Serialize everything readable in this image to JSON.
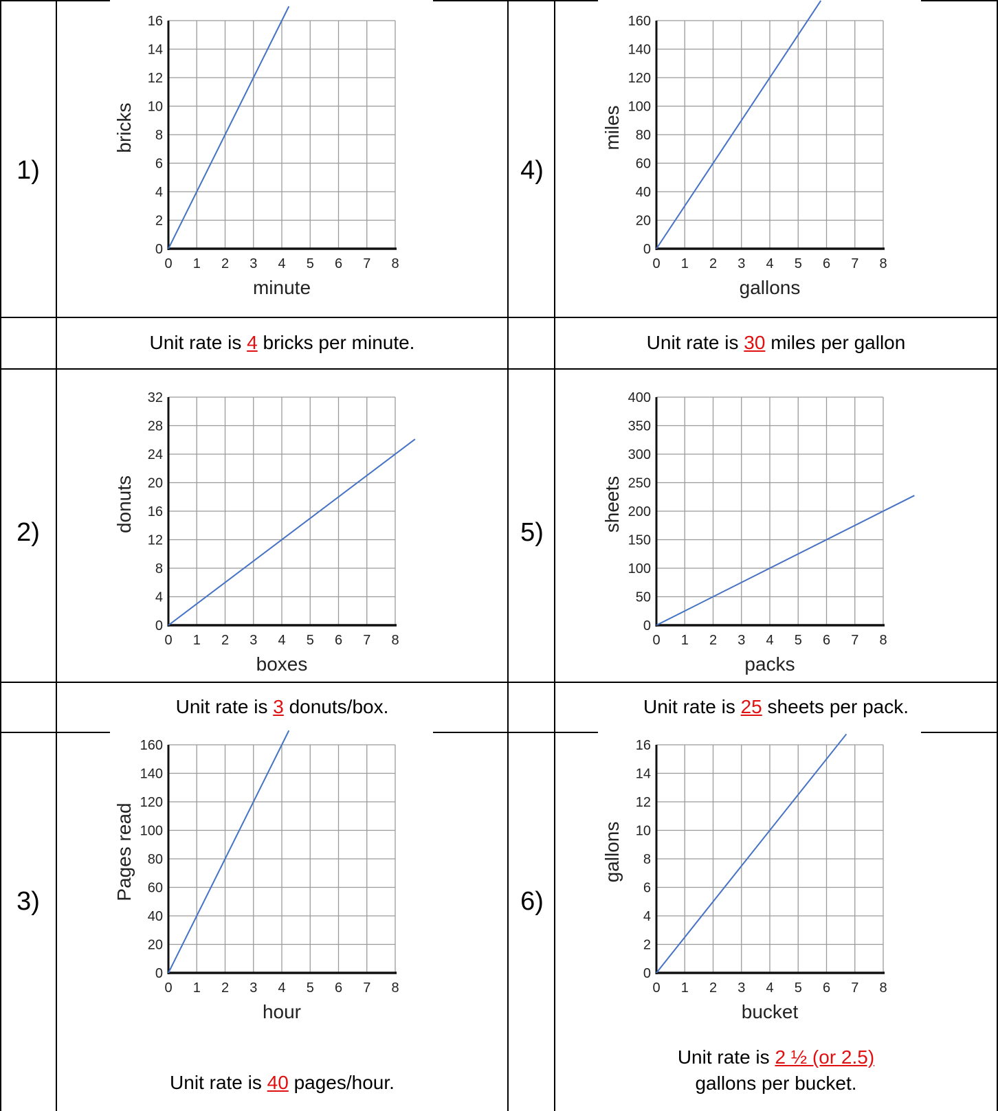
{
  "problems": [
    {
      "number": "1)",
      "rate_prefix": "Unit rate is ",
      "rate_value": "4",
      "rate_suffix": " bricks per minute."
    },
    {
      "number": "2)",
      "rate_prefix": "Unit rate is ",
      "rate_value": "3",
      "rate_suffix": " donuts/box."
    },
    {
      "number": "3)",
      "rate_prefix": "Unit rate is ",
      "rate_value": "40",
      "rate_suffix": " pages/hour."
    },
    {
      "number": "4)",
      "rate_prefix": "Unit rate is ",
      "rate_value": "30",
      "rate_suffix": " miles per gallon"
    },
    {
      "number": "5)",
      "rate_prefix": "Unit rate is ",
      "rate_value": "25",
      "rate_suffix": " sheets per pack."
    },
    {
      "number": "6)",
      "rate_prefix": "Unit rate is ",
      "rate_value": "2 ½ (or 2.5)",
      "rate_suffix": "gallons per bucket."
    }
  ],
  "colors": {
    "line": "#4472c4",
    "answer": "#e01010",
    "grid": "#9a9a9a"
  },
  "chart_data": [
    {
      "type": "line",
      "xlabel": "minute",
      "ylabel": "bricks",
      "xlim": [
        0,
        8
      ],
      "ylim": [
        0,
        16
      ],
      "xticks": [
        0,
        1,
        2,
        3,
        4,
        5,
        6,
        7,
        8
      ],
      "yticks": [
        0,
        2,
        4,
        6,
        8,
        10,
        12,
        14,
        16
      ],
      "x": [
        0,
        4.25
      ],
      "y": [
        0,
        17
      ],
      "grid": true
    },
    {
      "type": "line",
      "xlabel": "boxes",
      "ylabel": "donuts",
      "xlim": [
        0,
        8
      ],
      "ylim": [
        0,
        32
      ],
      "xticks": [
        0,
        1,
        2,
        3,
        4,
        5,
        6,
        7,
        8
      ],
      "yticks": [
        0,
        4,
        8,
        12,
        16,
        20,
        24,
        28,
        32
      ],
      "x": [
        0,
        8.7
      ],
      "y": [
        0,
        26.1
      ],
      "grid": true
    },
    {
      "type": "line",
      "xlabel": "hour",
      "ylabel": "Pages read",
      "xlim": [
        0,
        8
      ],
      "ylim": [
        0,
        160
      ],
      "xticks": [
        0,
        1,
        2,
        3,
        4,
        5,
        6,
        7,
        8
      ],
      "yticks": [
        0,
        20,
        40,
        60,
        80,
        100,
        120,
        140,
        160
      ],
      "x": [
        0,
        4.25
      ],
      "y": [
        0,
        170
      ],
      "grid": true
    },
    {
      "type": "line",
      "xlabel": "gallons",
      "ylabel": "miles",
      "xlim": [
        0,
        8
      ],
      "ylim": [
        0,
        160
      ],
      "xticks": [
        0,
        1,
        2,
        3,
        4,
        5,
        6,
        7,
        8
      ],
      "yticks": [
        0,
        20,
        40,
        60,
        80,
        100,
        120,
        140,
        160
      ],
      "x": [
        0,
        5.8
      ],
      "y": [
        0,
        174
      ],
      "grid": true
    },
    {
      "type": "line",
      "xlabel": "packs",
      "ylabel": "sheets",
      "xlim": [
        0,
        8
      ],
      "ylim": [
        0,
        400
      ],
      "xticks": [
        0,
        1,
        2,
        3,
        4,
        5,
        6,
        7,
        8
      ],
      "yticks": [
        0,
        50,
        100,
        150,
        200,
        250,
        300,
        350,
        400
      ],
      "x": [
        0,
        9.1
      ],
      "y": [
        0,
        227.5
      ],
      "grid": true
    },
    {
      "type": "line",
      "xlabel": "bucket",
      "ylabel": "gallons",
      "xlim": [
        0,
        8
      ],
      "ylim": [
        0,
        16
      ],
      "xticks": [
        0,
        1,
        2,
        3,
        4,
        5,
        6,
        7,
        8
      ],
      "yticks": [
        0,
        2,
        4,
        6,
        8,
        10,
        12,
        14,
        16
      ],
      "x": [
        0,
        6.7
      ],
      "y": [
        0,
        16.75
      ],
      "grid": true
    }
  ]
}
